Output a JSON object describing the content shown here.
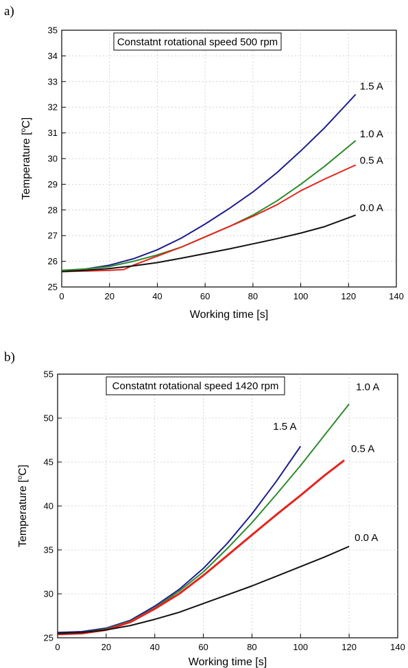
{
  "panels": [
    {
      "label": "a)",
      "box_text": "Constatnt rotational speed 500 rpm",
      "xlabel": "Working time [s]",
      "ylabel_prefix": "Temperature [",
      "ylabel_sup": "o",
      "ylabel_suffix": "C]"
    },
    {
      "label": "b)",
      "box_text": "Constatnt rotational speed 1420 rpm",
      "xlabel": "Working time [s]",
      "ylabel_prefix": "Temperature [",
      "ylabel_sup": "o",
      "ylabel_suffix": "C]"
    }
  ],
  "chart_data": [
    {
      "type": "line",
      "title": "Constatnt rotational speed 500 rpm",
      "xlabel": "Working time [s]",
      "ylabel": "Temperature [oC]",
      "xlim": [
        0,
        140
      ],
      "ylim": [
        25,
        35
      ],
      "xticks": [
        0,
        20,
        40,
        60,
        80,
        100,
        120,
        140
      ],
      "yticks": [
        25,
        26,
        27,
        28,
        29,
        30,
        31,
        32,
        33,
        34,
        35
      ],
      "grid": true,
      "series": [
        {
          "name": "1.5 A",
          "color": "#1c1c8c",
          "x": [
            0,
            10,
            20,
            30,
            40,
            50,
            60,
            70,
            80,
            90,
            100,
            110,
            123
          ],
          "y": [
            25.6,
            25.7,
            25.85,
            26.1,
            26.45,
            26.9,
            27.45,
            28.05,
            28.7,
            29.45,
            30.3,
            31.2,
            32.5
          ]
        },
        {
          "name": "1.0 A",
          "color": "#2a8a2a",
          "x": [
            0,
            10,
            20,
            30,
            40,
            50,
            60,
            70,
            80,
            90,
            100,
            110,
            123
          ],
          "y": [
            25.65,
            25.7,
            25.8,
            26.0,
            26.25,
            26.55,
            26.95,
            27.35,
            27.8,
            28.35,
            29.0,
            29.7,
            30.7
          ]
        },
        {
          "name": "0.5 A",
          "color": "#e8221c",
          "x": [
            0,
            10,
            20,
            26,
            30,
            40,
            50,
            60,
            70,
            80,
            90,
            100,
            110,
            123
          ],
          "y": [
            25.6,
            25.62,
            25.65,
            25.68,
            25.85,
            26.2,
            26.55,
            26.95,
            27.35,
            27.75,
            28.2,
            28.75,
            29.2,
            29.75
          ]
        },
        {
          "name": "0.0 A",
          "color": "#111111",
          "x": [
            0,
            10,
            20,
            30,
            40,
            50,
            60,
            70,
            80,
            90,
            100,
            110,
            123
          ],
          "y": [
            25.6,
            25.65,
            25.72,
            25.82,
            25.95,
            26.12,
            26.3,
            26.48,
            26.68,
            26.88,
            27.1,
            27.35,
            27.8
          ]
        }
      ]
    },
    {
      "type": "line",
      "title": "Constatnt rotational speed 1420 rpm",
      "xlabel": "Working time [s]",
      "ylabel": "Temperature [oC]",
      "xlim": [
        0,
        140
      ],
      "ylim": [
        25,
        55
      ],
      "xticks": [
        0,
        20,
        40,
        60,
        80,
        100,
        120,
        140
      ],
      "yticks": [
        25,
        30,
        35,
        40,
        45,
        50,
        55
      ],
      "grid": true,
      "series": [
        {
          "name": "1.5 A",
          "color": "#1c1c8c",
          "x": [
            0,
            10,
            20,
            30,
            40,
            50,
            60,
            70,
            80,
            90,
            100
          ],
          "y": [
            25.6,
            25.7,
            26.1,
            27.0,
            28.6,
            30.5,
            32.9,
            35.8,
            39.1,
            42.8,
            46.8
          ]
        },
        {
          "name": "1.0 A",
          "color": "#2a8a2a",
          "x": [
            0,
            10,
            20,
            30,
            40,
            50,
            60,
            70,
            80,
            90,
            100,
            110,
            120
          ],
          "y": [
            25.5,
            25.6,
            26.0,
            26.9,
            28.4,
            30.3,
            32.5,
            35.2,
            38.1,
            41.3,
            44.6,
            48.1,
            51.6
          ]
        },
        {
          "name": "0.5 A",
          "color": "#e8221c",
          "x": [
            0,
            10,
            20,
            30,
            40,
            50,
            60,
            70,
            80,
            90,
            100,
            110,
            118
          ],
          "y": [
            25.4,
            25.5,
            25.9,
            26.8,
            28.3,
            30.0,
            32.1,
            34.4,
            36.7,
            39.0,
            41.2,
            43.5,
            45.2
          ]
        },
        {
          "name": "0.0 A",
          "color": "#111111",
          "x": [
            0,
            10,
            20,
            30,
            40,
            50,
            60,
            70,
            80,
            90,
            100,
            110,
            120
          ],
          "y": [
            25.5,
            25.6,
            25.9,
            26.4,
            27.1,
            27.9,
            28.9,
            29.9,
            30.9,
            32.0,
            33.1,
            34.2,
            35.4
          ]
        }
      ]
    }
  ]
}
